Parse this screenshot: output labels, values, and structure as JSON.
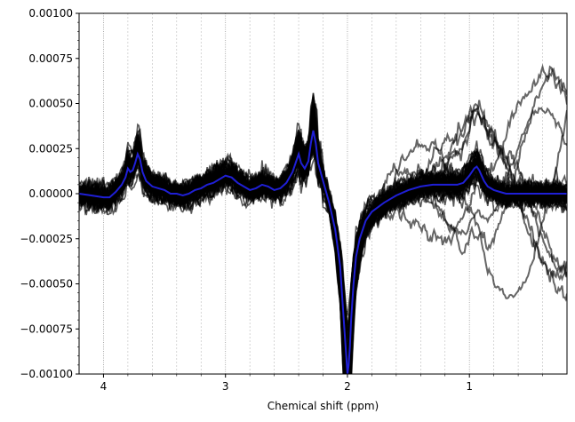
{
  "chart_data": {
    "type": "line",
    "title": "",
    "xlabel": "Chemical shift (ppm)",
    "ylabel": "",
    "xlim": [
      4.2,
      0.2
    ],
    "ylim": [
      -0.001,
      0.001
    ],
    "x_inverted": true,
    "xticks": [
      4,
      3,
      2,
      1
    ],
    "xtick_labels": [
      "4",
      "3",
      "2",
      "1"
    ],
    "yticks": [
      -0.001,
      -0.00075,
      -0.0005,
      -0.00025,
      0,
      0.00025,
      0.0005,
      0.00075,
      0.001
    ],
    "ytick_labels": [
      "−0.00100",
      "−0.00075",
      "−0.00050",
      "−0.00025",
      "0.00000",
      "0.00025",
      "0.00050",
      "0.00075",
      "0.00100"
    ],
    "vertical_gridlines_x": [
      4.0,
      3.8,
      3.6,
      3.4,
      3.2,
      3.0,
      2.8,
      2.6,
      2.4,
      2.2,
      2.0,
      1.8,
      1.6,
      1.4,
      1.2,
      1.0,
      0.8,
      0.6,
      0.4
    ],
    "colors": {
      "individual_spectra": "#000000",
      "mean_spectrum": "#1f1fd6",
      "grid": "#bbbbbb"
    },
    "individual_spectra_count": 60,
    "series": [
      {
        "color": "#1f1fd6",
        "role": "mean",
        "x": [
          4.2,
          4.1,
          4.0,
          3.95,
          3.9,
          3.85,
          3.82,
          3.8,
          3.78,
          3.76,
          3.74,
          3.72,
          3.7,
          3.68,
          3.65,
          3.6,
          3.55,
          3.5,
          3.45,
          3.4,
          3.35,
          3.3,
          3.25,
          3.2,
          3.15,
          3.1,
          3.05,
          3.0,
          2.95,
          2.9,
          2.85,
          2.8,
          2.75,
          2.7,
          2.65,
          2.6,
          2.55,
          2.5,
          2.45,
          2.42,
          2.4,
          2.38,
          2.35,
          2.32,
          2.3,
          2.28,
          2.26,
          2.24,
          2.2,
          2.15,
          2.1,
          2.06,
          2.03,
          2.0,
          1.99,
          1.98,
          1.97,
          1.95,
          1.93,
          1.9,
          1.85,
          1.8,
          1.7,
          1.6,
          1.5,
          1.4,
          1.3,
          1.2,
          1.1,
          1.05,
          1.0,
          0.96,
          0.94,
          0.92,
          0.9,
          0.88,
          0.85,
          0.8,
          0.75,
          0.7,
          0.6,
          0.5,
          0.4,
          0.3,
          0.2
        ],
        "y": [
          0.0,
          -1e-05,
          -2e-05,
          -2e-05,
          1e-05,
          5e-05,
          9e-05,
          0.00014,
          0.00012,
          0.00013,
          0.00017,
          0.00022,
          0.00019,
          0.00012,
          7e-05,
          4e-05,
          3e-05,
          2e-05,
          0.0,
          0.0,
          -1e-05,
          0.0,
          2e-05,
          3e-05,
          5e-05,
          6e-05,
          8e-05,
          0.0001,
          9e-05,
          6e-05,
          4e-05,
          2e-05,
          3e-05,
          5e-05,
          4e-05,
          2e-05,
          3e-05,
          6e-05,
          0.00012,
          0.00018,
          0.00022,
          0.00017,
          0.00014,
          0.00018,
          0.00028,
          0.00035,
          0.00028,
          0.00017,
          7e-05,
          -5e-05,
          -0.0002,
          -0.0004,
          -0.0007,
          -0.001,
          -0.00095,
          -0.00085,
          -0.0007,
          -0.0005,
          -0.00035,
          -0.00025,
          -0.00015,
          -0.0001,
          -5e-05,
          -1e-05,
          2e-05,
          4e-05,
          5e-05,
          5e-05,
          5e-05,
          6e-05,
          0.0001,
          0.00014,
          0.00015,
          0.00013,
          0.0001,
          7e-05,
          4e-05,
          2e-05,
          1e-05,
          0.0,
          0.0,
          0.0,
          0.0,
          0.0,
          0.0
        ]
      }
    ]
  }
}
